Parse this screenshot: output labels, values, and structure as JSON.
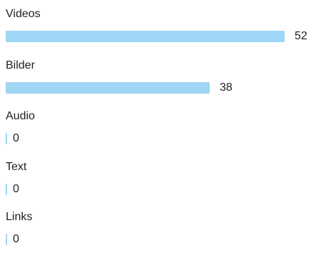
{
  "categories": [
    {
      "label": "Videos",
      "count": 52
    },
    {
      "label": "Bilder",
      "count": 38
    },
    {
      "label": "Audio",
      "count": 0
    },
    {
      "label": "Text",
      "count": 0
    },
    {
      "label": "Links",
      "count": 0
    }
  ],
  "max_count": 52,
  "colors": {
    "bar": "#9fd6f5",
    "text": "#1f1f1f",
    "background": "#ffffff"
  }
}
